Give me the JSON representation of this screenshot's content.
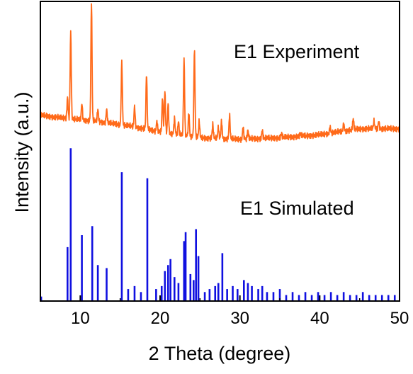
{
  "colors": {
    "experiment": "#ff6a1a",
    "simulated": "#1010e0",
    "axis": "#000000"
  },
  "chart_data": {
    "type": "line",
    "title": "",
    "xlabel": "2 Theta (degree)",
    "ylabel": "Intensity (a.u.)",
    "xlim": [
      5,
      50
    ],
    "xticks": [
      10,
      20,
      30,
      40,
      50
    ],
    "x_tick_labels": [
      "10",
      "20",
      "30",
      "40",
      "50"
    ],
    "y_ticks_shown": false,
    "grid": false,
    "legend": "none",
    "series": [
      {
        "name": "E1 Experiment",
        "style": "line",
        "baseline": [
          [
            5,
            0.62
          ],
          [
            8,
            0.61
          ],
          [
            12,
            0.6
          ],
          [
            16,
            0.585
          ],
          [
            20,
            0.565
          ],
          [
            25,
            0.545
          ],
          [
            30,
            0.54
          ],
          [
            35,
            0.545
          ],
          [
            40,
            0.555
          ],
          [
            45,
            0.575
          ],
          [
            50,
            0.575
          ]
        ],
        "peaks": [
          {
            "x": 8.4,
            "y": 0.68
          },
          {
            "x": 8.8,
            "y": 0.9
          },
          {
            "x": 10.2,
            "y": 0.66
          },
          {
            "x": 11.4,
            "y": 1.0
          },
          {
            "x": 12.2,
            "y": 0.64
          },
          {
            "x": 13.3,
            "y": 0.64
          },
          {
            "x": 15.2,
            "y": 0.8
          },
          {
            "x": 16.8,
            "y": 0.65
          },
          {
            "x": 18.3,
            "y": 0.76
          },
          {
            "x": 19.6,
            "y": 0.6
          },
          {
            "x": 20.3,
            "y": 0.68
          },
          {
            "x": 20.6,
            "y": 0.7
          },
          {
            "x": 21.0,
            "y": 0.66
          },
          {
            "x": 21.8,
            "y": 0.61
          },
          {
            "x": 22.3,
            "y": 0.6
          },
          {
            "x": 23.0,
            "y": 0.81
          },
          {
            "x": 23.6,
            "y": 0.63
          },
          {
            "x": 24.3,
            "y": 0.84
          },
          {
            "x": 24.9,
            "y": 0.6
          },
          {
            "x": 26.6,
            "y": 0.59
          },
          {
            "x": 27.3,
            "y": 0.58
          },
          {
            "x": 27.7,
            "y": 0.6
          },
          {
            "x": 28.7,
            "y": 0.62
          },
          {
            "x": 30.4,
            "y": 0.58
          },
          {
            "x": 31.0,
            "y": 0.57
          },
          {
            "x": 32.8,
            "y": 0.57
          },
          {
            "x": 35.2,
            "y": 0.56
          },
          {
            "x": 37.6,
            "y": 0.56
          },
          {
            "x": 41.3,
            "y": 0.58
          },
          {
            "x": 43.0,
            "y": 0.59
          },
          {
            "x": 44.2,
            "y": 0.61
          },
          {
            "x": 46.8,
            "y": 0.6
          },
          {
            "x": 47.4,
            "y": 0.6
          }
        ]
      },
      {
        "name": "E1 Simulated",
        "style": "sticks",
        "baseline": 0.0,
        "sticks": [
          {
            "x": 5.1,
            "y": 0.015
          },
          {
            "x": 8.4,
            "y": 0.18
          },
          {
            "x": 8.8,
            "y": 0.51
          },
          {
            "x": 10.2,
            "y": 0.22
          },
          {
            "x": 11.5,
            "y": 0.25
          },
          {
            "x": 12.2,
            "y": 0.12
          },
          {
            "x": 13.3,
            "y": 0.11
          },
          {
            "x": 15.2,
            "y": 0.43
          },
          {
            "x": 16.0,
            "y": 0.04
          },
          {
            "x": 16.8,
            "y": 0.05
          },
          {
            "x": 17.6,
            "y": 0.03
          },
          {
            "x": 18.4,
            "y": 0.41
          },
          {
            "x": 19.5,
            "y": 0.04
          },
          {
            "x": 20.2,
            "y": 0.05
          },
          {
            "x": 20.6,
            "y": 0.1
          },
          {
            "x": 21.0,
            "y": 0.12
          },
          {
            "x": 21.3,
            "y": 0.14
          },
          {
            "x": 21.8,
            "y": 0.08
          },
          {
            "x": 22.3,
            "y": 0.06
          },
          {
            "x": 23.0,
            "y": 0.2
          },
          {
            "x": 23.2,
            "y": 0.23
          },
          {
            "x": 23.8,
            "y": 0.09
          },
          {
            "x": 24.2,
            "y": 0.07
          },
          {
            "x": 24.5,
            "y": 0.24
          },
          {
            "x": 24.8,
            "y": 0.15
          },
          {
            "x": 25.6,
            "y": 0.03
          },
          {
            "x": 26.2,
            "y": 0.04
          },
          {
            "x": 26.9,
            "y": 0.05
          },
          {
            "x": 27.3,
            "y": 0.06
          },
          {
            "x": 27.8,
            "y": 0.16
          },
          {
            "x": 28.4,
            "y": 0.04
          },
          {
            "x": 29.1,
            "y": 0.05
          },
          {
            "x": 29.7,
            "y": 0.04
          },
          {
            "x": 30.5,
            "y": 0.07
          },
          {
            "x": 31.0,
            "y": 0.06
          },
          {
            "x": 31.5,
            "y": 0.05
          },
          {
            "x": 32.3,
            "y": 0.04
          },
          {
            "x": 32.8,
            "y": 0.05
          },
          {
            "x": 33.4,
            "y": 0.03
          },
          {
            "x": 34.2,
            "y": 0.03
          },
          {
            "x": 35.0,
            "y": 0.04
          },
          {
            "x": 35.8,
            "y": 0.02
          },
          {
            "x": 36.6,
            "y": 0.03
          },
          {
            "x": 37.4,
            "y": 0.02
          },
          {
            "x": 38.2,
            "y": 0.03
          },
          {
            "x": 39.0,
            "y": 0.02
          },
          {
            "x": 39.8,
            "y": 0.03
          },
          {
            "x": 40.6,
            "y": 0.02
          },
          {
            "x": 41.4,
            "y": 0.03
          },
          {
            "x": 42.2,
            "y": 0.02
          },
          {
            "x": 43.0,
            "y": 0.03
          },
          {
            "x": 43.8,
            "y": 0.02
          },
          {
            "x": 44.6,
            "y": 0.02
          },
          {
            "x": 45.4,
            "y": 0.03
          },
          {
            "x": 46.2,
            "y": 0.02
          },
          {
            "x": 47.0,
            "y": 0.02
          },
          {
            "x": 47.8,
            "y": 0.02
          },
          {
            "x": 48.6,
            "y": 0.02
          },
          {
            "x": 49.4,
            "y": 0.02
          }
        ]
      }
    ],
    "annotations": [
      {
        "text": "E1 Experiment",
        "series": "E1 Experiment"
      },
      {
        "text": "E1 Simulated",
        "series": "E1 Simulated"
      }
    ]
  }
}
